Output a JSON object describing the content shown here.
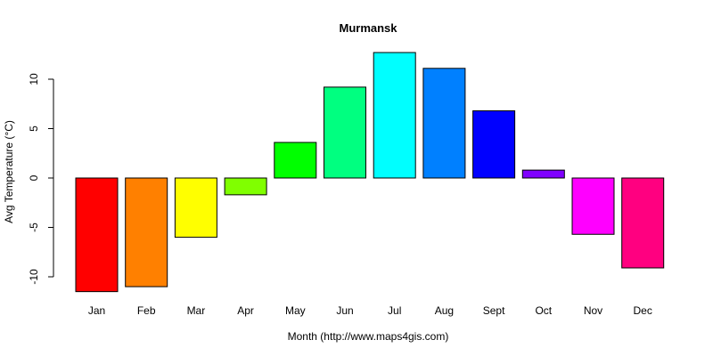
{
  "chart_data": {
    "type": "bar",
    "title": "Murmansk",
    "xlabel": "Month (http://www.maps4gis.com)",
    "ylabel": "Avg Temperature (°C)",
    "categories": [
      "Jan",
      "Feb",
      "Mar",
      "Apr",
      "May",
      "Jun",
      "Jul",
      "Aug",
      "Sept",
      "Oct",
      "Nov",
      "Dec"
    ],
    "values": [
      -11.5,
      -11.0,
      -6.0,
      -1.7,
      3.6,
      9.2,
      12.7,
      11.1,
      6.8,
      0.8,
      -5.7,
      -9.1
    ],
    "colors": [
      "#ff0000",
      "#ff8000",
      "#ffff00",
      "#80ff00",
      "#00ff00",
      "#00ff80",
      "#00ffff",
      "#0080ff",
      "#0000ff",
      "#8000ff",
      "#ff00ff",
      "#ff0080"
    ],
    "yticks": [
      -10,
      -5,
      0,
      5,
      10
    ],
    "ylim": [
      -11.5,
      12.7
    ],
    "grid": false,
    "legend": "none"
  }
}
